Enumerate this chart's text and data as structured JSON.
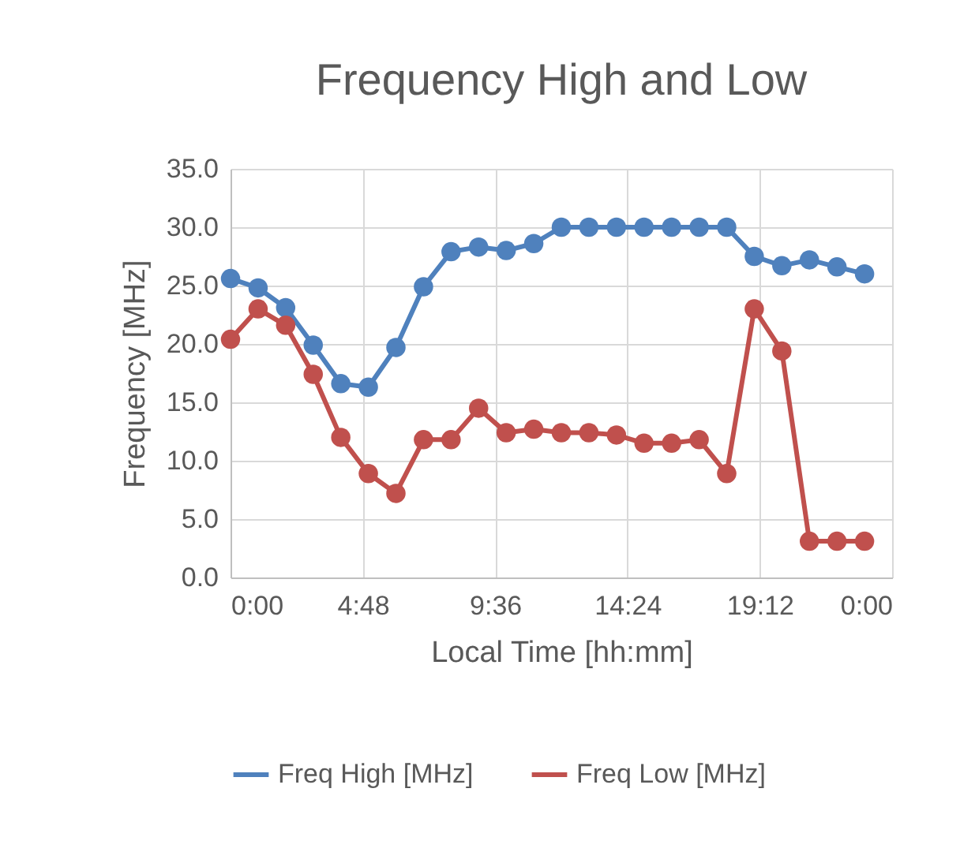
{
  "chart_data": {
    "type": "line",
    "title": "Frequency High and Low",
    "xlabel": "Local Time [hh:mm]",
    "ylabel": "Frequency [MHz]",
    "x": [
      0,
      1,
      2,
      3,
      4,
      5,
      6,
      7,
      8,
      9,
      10,
      11,
      12,
      13,
      14,
      15,
      16,
      17,
      18,
      19,
      20,
      21,
      22,
      23
    ],
    "series": [
      {
        "name": "Freq High [MHz]",
        "color": "#4f81bd",
        "values": [
          25.6,
          24.8,
          23.1,
          19.9,
          16.6,
          16.3,
          19.7,
          24.9,
          27.9,
          28.3,
          28.0,
          28.6,
          30.0,
          30.0,
          30.0,
          30.0,
          30.0,
          30.0,
          30.0,
          27.5,
          26.7,
          27.2,
          26.6,
          26.0
        ]
      },
      {
        "name": "Freq Low [MHz]",
        "color": "#c0504d",
        "values": [
          20.4,
          23.0,
          21.6,
          17.4,
          12.0,
          8.9,
          7.2,
          11.8,
          11.8,
          14.5,
          12.4,
          12.7,
          12.4,
          12.4,
          12.2,
          11.5,
          11.5,
          11.8,
          8.9,
          23.0,
          19.4,
          3.1,
          3.1,
          3.1
        ]
      }
    ],
    "xlim": [
      0,
      24
    ],
    "xticks": [
      {
        "value": 0,
        "label": "0:00"
      },
      {
        "value": 4.8,
        "label": "4:48"
      },
      {
        "value": 9.6,
        "label": "9:36"
      },
      {
        "value": 14.4,
        "label": "14:24"
      },
      {
        "value": 19.2,
        "label": "19:12"
      },
      {
        "value": 24,
        "label": "0:00"
      }
    ],
    "ylim": [
      0,
      35
    ],
    "yticks": [
      {
        "value": 0,
        "label": "0.0"
      },
      {
        "value": 5,
        "label": "5.0"
      },
      {
        "value": 10,
        "label": "10.0"
      },
      {
        "value": 15,
        "label": "15.0"
      },
      {
        "value": 20,
        "label": "20.0"
      },
      {
        "value": 25,
        "label": "25.0"
      },
      {
        "value": 30,
        "label": "30.0"
      },
      {
        "value": 35,
        "label": "35.0"
      }
    ],
    "grid": true,
    "legend": "bottom",
    "marker": "circle",
    "line_style": "solid"
  }
}
